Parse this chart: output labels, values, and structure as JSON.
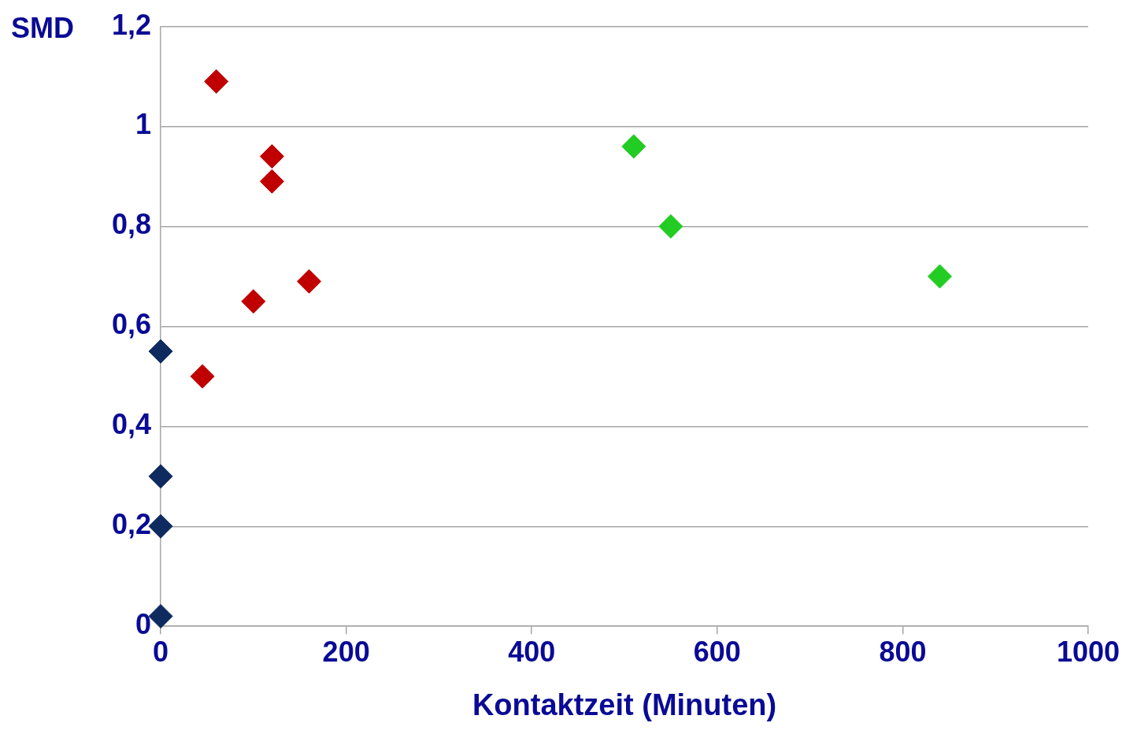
{
  "chart_data": {
    "type": "scatter",
    "xlabel": "Kontaktzeit (Minuten)",
    "ylabel": "SMD",
    "xlim": [
      0,
      1000
    ],
    "xticks": [
      0,
      200,
      400,
      600,
      800,
      1000
    ],
    "ylim": [
      0,
      1.2
    ],
    "yticks": [
      0,
      {
        "value": 0.2,
        "label": "0,2"
      },
      {
        "value": 0.4,
        "label": "0,4"
      },
      {
        "value": 0.6,
        "label": "0,6"
      },
      {
        "value": 0.8,
        "label": "0,8"
      },
      1,
      {
        "value": 1.2,
        "label": "1,2"
      }
    ],
    "grid": "y",
    "marker": "diamond",
    "legend": false,
    "series": [
      {
        "color": "#0e2a5e",
        "x": [
          0,
          0,
          0,
          0
        ],
        "values": [
          0.55,
          0.3,
          0.2,
          0.02
        ]
      },
      {
        "color": "#c00000",
        "x": [
          60,
          120,
          120,
          100,
          160,
          45
        ],
        "values": [
          1.09,
          0.94,
          0.89,
          0.65,
          0.69,
          0.5
        ]
      },
      {
        "color": "#22cc22",
        "x": [
          510,
          550,
          840
        ],
        "values": [
          0.96,
          0.8,
          0.7
        ]
      }
    ]
  }
}
